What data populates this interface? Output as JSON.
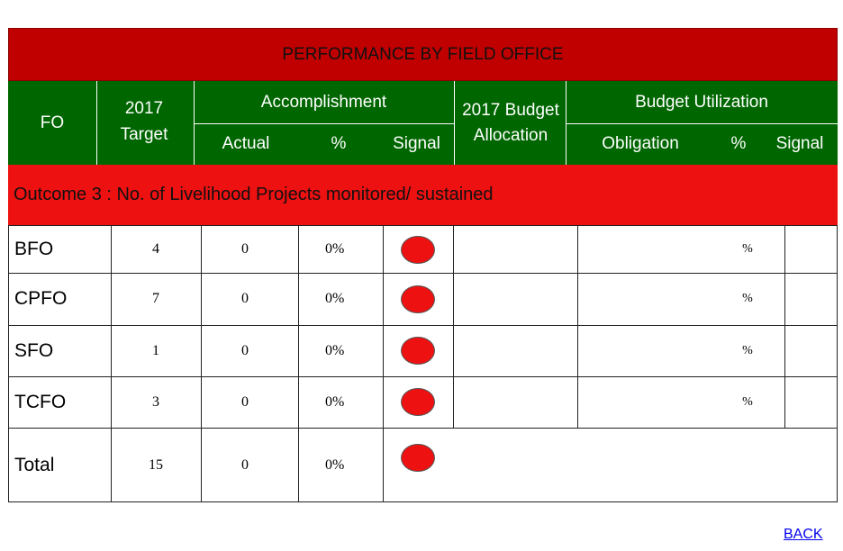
{
  "title": "PERFORMANCE BY FIELD OFFICE",
  "header": {
    "fo": "FO",
    "target": "2017 Target",
    "accomplishment": "Accomplishment",
    "actual": "Actual",
    "percent": "%",
    "signal": "Signal",
    "budget_allocation": "2017 Budget Allocation",
    "budget_utilization": "Budget Utilization",
    "obligation": "Obligation",
    "util_percent": "%",
    "util_signal": "Signal"
  },
  "outcome": "Outcome 3 : No. of Livelihood Projects monitored/ sustained",
  "rows": [
    {
      "fo": "BFO",
      "target": "4",
      "actual": "0",
      "percent": "0%",
      "signal": "red",
      "util_percent": "%"
    },
    {
      "fo": "CPFO",
      "target": "7",
      "actual": "0",
      "percent": "0%",
      "signal": "red",
      "util_percent": "%"
    },
    {
      "fo": "SFO",
      "target": "1",
      "actual": "0",
      "percent": "0%",
      "signal": "red",
      "util_percent": "%"
    },
    {
      "fo": "TCFO",
      "target": "3",
      "actual": "0",
      "percent": "0%",
      "signal": "red",
      "util_percent": "%"
    },
    {
      "fo": "Total",
      "target": "15",
      "actual": "0",
      "percent": "0%",
      "signal": "red",
      "util_percent": ""
    }
  ],
  "colors": {
    "title": "#c00000",
    "header": "#006600",
    "outcome": "#ee1111",
    "signal_red": "#ee1111"
  },
  "back_label": "BACK"
}
